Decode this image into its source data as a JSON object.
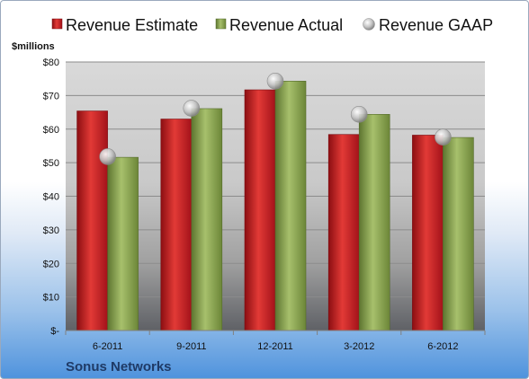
{
  "chart_data": {
    "type": "bar",
    "ylabel": "$millions",
    "company": "Sonus Networks",
    "categories": [
      "6-2011",
      "9-2011",
      "12-2011",
      "3-2012",
      "6-2012"
    ],
    "series": [
      {
        "name": "Revenue Estimate",
        "type": "bar",
        "color": "#c8161e",
        "values": [
          65.4,
          63.0,
          71.7,
          58.4,
          58.2
        ]
      },
      {
        "name": "Revenue Actual",
        "type": "bar",
        "color": "#88a34e",
        "values": [
          51.6,
          66.1,
          74.3,
          64.4,
          57.5
        ]
      },
      {
        "name": "Revenue GAAP",
        "type": "marker",
        "color": "#b8b8b8",
        "values": [
          51.8,
          66.2,
          74.3,
          64.4,
          57.6
        ]
      }
    ],
    "ylim": [
      0,
      80
    ],
    "yticks": [
      0,
      10,
      20,
      30,
      40,
      50,
      60,
      70,
      80
    ],
    "ytick_labels": [
      "$-",
      "$10",
      "$20",
      "$30",
      "$40",
      "$50",
      "$60",
      "$70",
      "$80"
    ],
    "grid": true,
    "legend_position": "top"
  }
}
